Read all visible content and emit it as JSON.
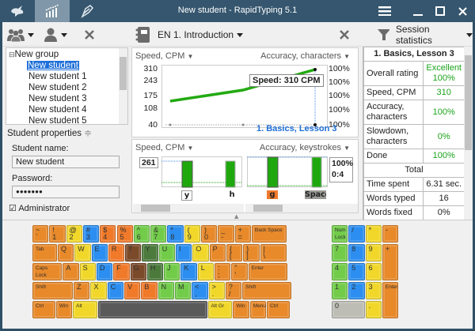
{
  "window": {
    "title": "New student - RapidTyping  5.1",
    "tabs": [
      {
        "name": "rabbit-icon",
        "active": false
      },
      {
        "name": "statistics-icon",
        "active": true
      },
      {
        "name": "editor-icon",
        "active": false
      }
    ]
  },
  "toolbar": {
    "lesson_selector": "EN 1. Introduction",
    "stats_selector": "Session statistics"
  },
  "tree": {
    "group": "New group",
    "students": [
      "New student",
      "New student 1",
      "New student 2",
      "New student 3",
      "New student 4",
      "New student 5"
    ],
    "selected_index": 0
  },
  "properties": {
    "header": "Student properties",
    "name_label": "Student name:",
    "name_value": "New student",
    "password_label": "Password:",
    "password_value": "●●●●●●●",
    "admin_label": "Administrator",
    "admin_checked": true
  },
  "chart_data": [
    {
      "type": "line",
      "title": "1. Basics, Lesson 3",
      "ylabel": "Speed, CPM",
      "y2label": "Accuracy, characters",
      "yticks": [
        "310",
        "243",
        "175",
        "108",
        "40"
      ],
      "y2ticks": [
        "100%",
        "100%",
        "100%",
        "100%",
        "100%"
      ],
      "ylim": [
        40,
        310
      ],
      "x": [
        1,
        2,
        3
      ],
      "series": [
        {
          "name": "Speed, CPM",
          "values": [
            140,
            195,
            310
          ],
          "color": "#22aa11"
        }
      ],
      "tooltip": "Speed: 310 CPM"
    },
    {
      "type": "bar",
      "ylabel": "Speed, CPM",
      "y2label": "Accuracy, keystrokes",
      "left_value": "261",
      "right_value": "100%",
      "right_value2": "0:4",
      "categories": [
        "y",
        "h",
        "g",
        "Space"
      ],
      "series": [
        {
          "name": "Speed",
          "values": [
            261,
            261,
            261,
            261
          ]
        }
      ]
    }
  ],
  "session": {
    "header": "1. Basics, Lesson 3",
    "rows": [
      {
        "label": "Overall rating",
        "value": "Excellent\n100%",
        "green": true
      },
      {
        "label": "Speed, CPM",
        "value": "310",
        "green": true
      },
      {
        "label": "Accuracy, characters",
        "value": "100%",
        "green": true
      },
      {
        "label": "Slowdown, characters",
        "value": "0%",
        "green": true
      },
      {
        "label": "Done",
        "value": "100%",
        "green": true
      }
    ],
    "total_header": "Total",
    "total_rows": [
      {
        "label": "Time spent",
        "value": "6.31 sec."
      },
      {
        "label": "Words typed",
        "value": "16"
      },
      {
        "label": "Words fixed",
        "value": "0%"
      }
    ]
  },
  "keyboard": {
    "row1": [
      [
        "~",
        "`",
        "o"
      ],
      [
        "!",
        "1",
        "o"
      ],
      [
        "@",
        "2",
        "y"
      ],
      [
        "#",
        "3",
        "b"
      ],
      [
        "$",
        "4",
        "r"
      ],
      [
        "%",
        "5",
        "r"
      ],
      [
        "^",
        "6",
        "g"
      ],
      [
        "&",
        "7",
        "g"
      ],
      [
        "*",
        "8",
        "b"
      ],
      [
        "(",
        "9",
        "y"
      ],
      [
        ")",
        "0",
        "o"
      ],
      [
        "_",
        "-",
        "o"
      ],
      [
        "+",
        "=",
        "o"
      ],
      [
        "Back Space",
        "",
        "o"
      ]
    ],
    "row2": [
      [
        "Tab",
        "",
        "o"
      ],
      [
        "Q",
        "",
        "o"
      ],
      [
        "W",
        "",
        "y"
      ],
      [
        "E",
        "",
        "b"
      ],
      [
        "R",
        "",
        "r"
      ],
      [
        "T",
        "",
        "br"
      ],
      [
        "Y",
        "",
        "dg"
      ],
      [
        "U",
        "",
        "g"
      ],
      [
        "I",
        "",
        "b"
      ],
      [
        "O",
        "",
        "y"
      ],
      [
        "P",
        "",
        "o"
      ],
      [
        "{",
        "[",
        "o"
      ],
      [
        "}",
        "]",
        "o"
      ],
      [
        "|",
        "\\",
        "o"
      ]
    ],
    "row3": [
      [
        "Caps Lock",
        "",
        "o"
      ],
      [
        "A",
        "",
        "o"
      ],
      [
        "S",
        "",
        "y"
      ],
      [
        "D",
        "",
        "b"
      ],
      [
        "F",
        "",
        "r"
      ],
      [
        "G",
        "",
        "br"
      ],
      [
        "H",
        "",
        "dg"
      ],
      [
        "J",
        "",
        "g"
      ],
      [
        "K",
        "",
        "b"
      ],
      [
        "L",
        "",
        "y"
      ],
      [
        ":",
        ";",
        "o"
      ],
      [
        "\"",
        "'",
        "o"
      ],
      [
        "Enter",
        "",
        "o"
      ]
    ],
    "row4": [
      [
        "Shift",
        "",
        "o"
      ],
      [
        "Z",
        "",
        "o"
      ],
      [
        "X",
        "",
        "y"
      ],
      [
        "C",
        "",
        "b"
      ],
      [
        "V",
        "",
        "r"
      ],
      [
        "B",
        "",
        "r"
      ],
      [
        "N",
        "",
        "g"
      ],
      [
        "M",
        "",
        "g"
      ],
      [
        "<",
        ",",
        "b"
      ],
      [
        ">",
        ".",
        "y"
      ],
      [
        "?",
        "/",
        "o"
      ],
      [
        "Shift",
        "",
        "o"
      ]
    ],
    "row5": [
      [
        "Ctrl",
        "",
        "o"
      ],
      [
        "Win",
        "",
        "o"
      ],
      [
        "Alt",
        "",
        "y"
      ],
      [
        "",
        "",
        "dk"
      ],
      [
        "Alt Gr",
        "",
        "y"
      ],
      [
        "Win",
        "",
        "o"
      ],
      [
        "Menu",
        "",
        "o"
      ],
      [
        "Ctrl",
        "",
        "o"
      ]
    ],
    "numpad": [
      [
        "Num Lock",
        "g"
      ],
      [
        "/",
        "b"
      ],
      [
        "*",
        "y"
      ],
      [
        "-",
        "o"
      ],
      [
        "7",
        "g"
      ],
      [
        "8",
        "b"
      ],
      [
        "9",
        "y"
      ],
      [
        "+",
        "o"
      ],
      [
        "4",
        "g"
      ],
      [
        "5",
        "b"
      ],
      [
        "6",
        "y"
      ],
      [
        "1",
        "g"
      ],
      [
        "2",
        "b"
      ],
      [
        "3",
        "y"
      ],
      [
        "Enter",
        "o"
      ],
      [
        "0",
        "gr"
      ],
      [
        ".",
        "y"
      ]
    ]
  }
}
